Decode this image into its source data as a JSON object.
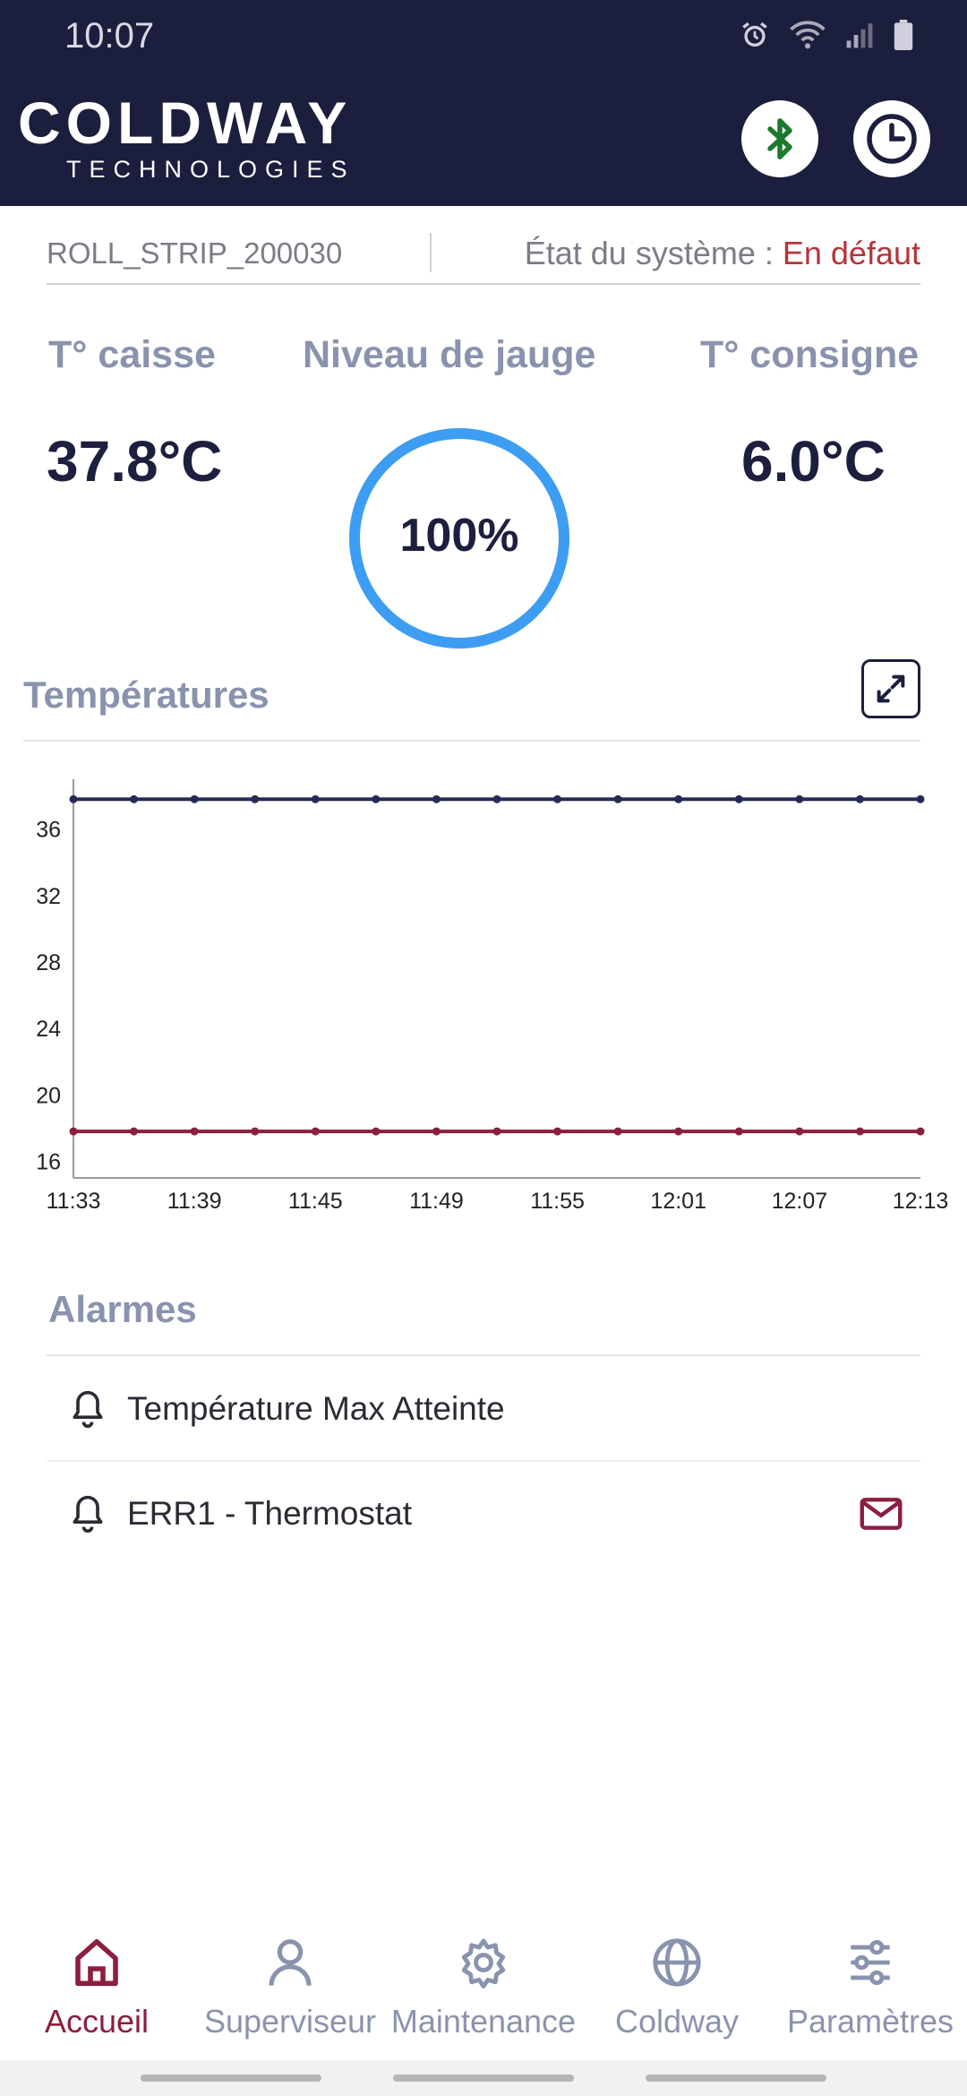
{
  "status_bar": {
    "time": "10:07"
  },
  "header": {
    "brand_main": "COLDWAY",
    "brand_sub": "TECHNOLOGIES",
    "colors": {
      "background": "#1c1e3d",
      "bluetooth": "#1c7a2c"
    }
  },
  "device": {
    "name": "ROLL_STRIP_200030",
    "state_label": "État du système :",
    "state_value": "En défaut"
  },
  "metrics": {
    "box_temp_label": "T° caisse",
    "box_temp_value": "37.8°C",
    "gauge_label": "Niveau de jauge",
    "gauge_value": "100%",
    "gauge_level": 1.0,
    "setpoint_label": "T° consigne",
    "setpoint_value": "6.0°C"
  },
  "temperatures": {
    "title": "Températures"
  },
  "chart_data": {
    "type": "line",
    "title": "",
    "xlabel": "",
    "ylabel": "",
    "ylim": [
      15,
      39
    ],
    "y_ticks": [
      "16",
      "20",
      "24",
      "28",
      "32",
      "36"
    ],
    "x_tick_labels": [
      "11:33",
      "11:39",
      "11:45",
      "11:49",
      "11:55",
      "12:01",
      "12:07",
      "12:13"
    ],
    "x_points": 15,
    "grid": false,
    "series": [
      {
        "color": "#262a55",
        "values": [
          37.8,
          37.8,
          37.8,
          37.8,
          37.8,
          37.8,
          37.8,
          37.8,
          37.8,
          37.8,
          37.8,
          37.8,
          37.8,
          37.8,
          37.8
        ]
      },
      {
        "color": "#8b1f3d",
        "values": [
          17.8,
          17.8,
          17.8,
          17.8,
          17.8,
          17.8,
          17.8,
          17.8,
          17.8,
          17.8,
          17.8,
          17.8,
          17.8,
          17.8,
          17.8
        ]
      }
    ]
  },
  "alarms": {
    "title": "Alarmes",
    "items": [
      {
        "label": "Température Max Atteinte"
      },
      {
        "label": "ERR1 - Thermostat"
      }
    ]
  },
  "nav": {
    "items": [
      {
        "label": "Accueil",
        "icon": "home-icon",
        "active": true
      },
      {
        "label": "Superviseur",
        "icon": "user-icon",
        "active": false
      },
      {
        "label": "Maintenance",
        "icon": "gear-icon",
        "active": false
      },
      {
        "label": "Coldway",
        "icon": "globe-icon",
        "active": false
      },
      {
        "label": "Paramètres",
        "icon": "sliders-icon",
        "active": false
      }
    ],
    "colors": {
      "active": "#8b1f3d",
      "inactive": "#8a93ad"
    }
  }
}
